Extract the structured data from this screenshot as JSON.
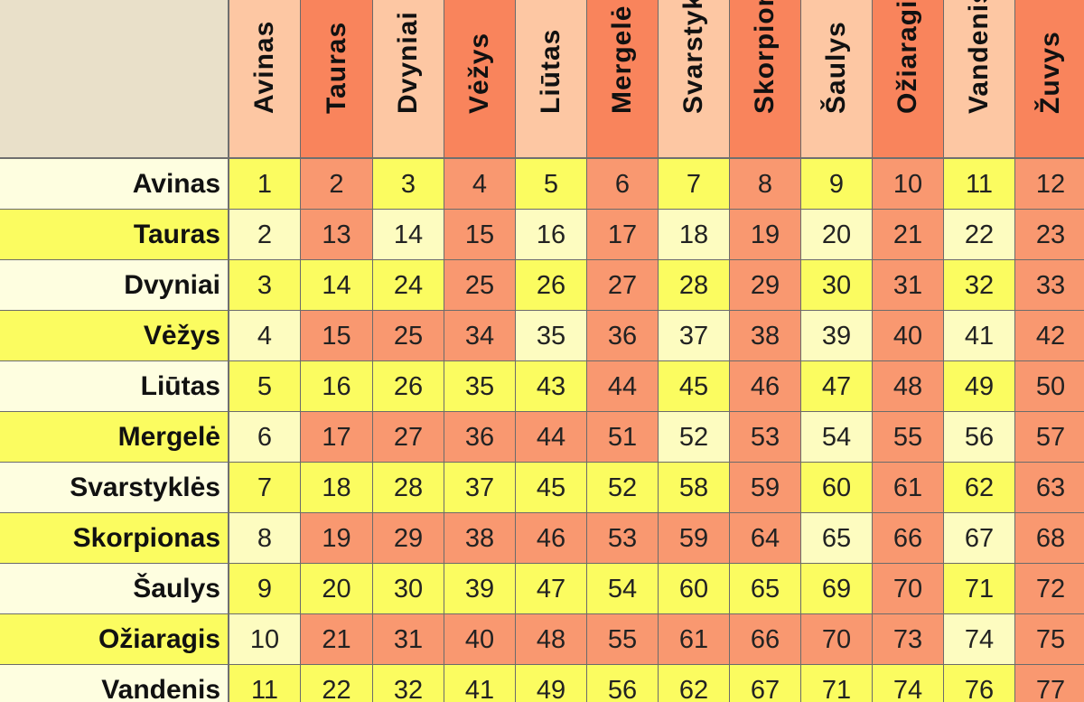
{
  "colors": {
    "corner": "#e9e0c9",
    "header_light": "#fdc7a3",
    "header_dark": "#f9845c",
    "cell_orange": "#f99870",
    "cell_yellow_bright": "#fbfc60",
    "cell_yellow_pale": "#fdfcc0",
    "rowhead_pale": "#fefee0",
    "rowhead_bright": "#fbfc60"
  },
  "table": {
    "column_headers": [
      "Avinas",
      "Tauras",
      "Dvyniai",
      "Vėžys",
      "Liūtas",
      "Mergelė",
      "Svarstyklės",
      "Skorpionas",
      "Šaulys",
      "Ožiaragis",
      "Vandenis",
      "Žuvys"
    ],
    "row_headers": [
      "Avinas",
      "Tauras",
      "Dvyniai",
      "Vėžys",
      "Liūtas",
      "Mergelė",
      "Svarstyklės",
      "Skorpionas",
      "Šaulys",
      "Ožiaragis",
      "Vandenis"
    ],
    "rows": [
      [
        "1",
        "2",
        "3",
        "4",
        "5",
        "6",
        "7",
        "8",
        "9",
        "10",
        "11",
        "12"
      ],
      [
        "2",
        "13",
        "14",
        "15",
        "16",
        "17",
        "18",
        "19",
        "20",
        "21",
        "22",
        "23"
      ],
      [
        "3",
        "14",
        "24",
        "25",
        "26",
        "27",
        "28",
        "29",
        "30",
        "31",
        "32",
        "33"
      ],
      [
        "4",
        "15",
        "25",
        "34",
        "35",
        "36",
        "37",
        "38",
        "39",
        "40",
        "41",
        "42"
      ],
      [
        "5",
        "16",
        "26",
        "35",
        "43",
        "44",
        "45",
        "46",
        "47",
        "48",
        "49",
        "50"
      ],
      [
        "6",
        "17",
        "27",
        "36",
        "44",
        "51",
        "52",
        "53",
        "54",
        "55",
        "56",
        "57"
      ],
      [
        "7",
        "18",
        "28",
        "37",
        "45",
        "52",
        "58",
        "59",
        "60",
        "61",
        "62",
        "63"
      ],
      [
        "8",
        "19",
        "29",
        "38",
        "46",
        "53",
        "59",
        "64",
        "65",
        "66",
        "67",
        "68"
      ],
      [
        "9",
        "20",
        "30",
        "39",
        "47",
        "54",
        "60",
        "65",
        "69",
        "70",
        "71",
        "72"
      ],
      [
        "10",
        "21",
        "31",
        "40",
        "48",
        "55",
        "61",
        "66",
        "70",
        "73",
        "74",
        "75"
      ],
      [
        "11",
        "22",
        "32",
        "41",
        "49",
        "56",
        "62",
        "67",
        "71",
        "74",
        "76",
        "77"
      ]
    ]
  }
}
